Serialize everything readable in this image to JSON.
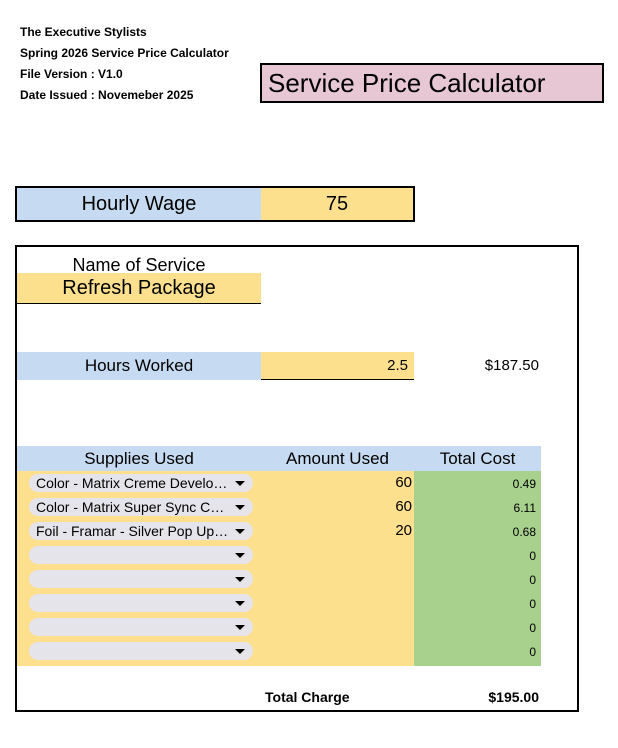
{
  "header": {
    "company": "The Executive Stylists",
    "subtitle": "Spring 2026 Service Price Calculator",
    "file_version": "File Version : V1.0",
    "date_issued": "Date Issued : Novemeber 2025"
  },
  "title_box": "Service Price Calculator",
  "wage": {
    "label": "Hourly Wage",
    "value": "75"
  },
  "service": {
    "label": "Name of Service",
    "value": "Refresh Package"
  },
  "hours": {
    "label": "Hours Worked",
    "value": "2.5",
    "total": "$187.50"
  },
  "supplies": {
    "headers": {
      "supplies": "Supplies Used",
      "amount": "Amount Used",
      "total": "Total Cost"
    },
    "rows": [
      {
        "name": "Color - Matrix Creme Developer",
        "amount": "60",
        "cost": "0.49"
      },
      {
        "name": "Color - Matrix Super Sync Color",
        "amount": "60",
        "cost": "6.11"
      },
      {
        "name": "Foil - Framar - Silver Pop Up Foil",
        "amount": "20",
        "cost": "0.68"
      },
      {
        "name": "",
        "amount": "",
        "cost": "0"
      },
      {
        "name": "",
        "amount": "",
        "cost": "0"
      },
      {
        "name": "",
        "amount": "",
        "cost": "0"
      },
      {
        "name": "",
        "amount": "",
        "cost": "0"
      },
      {
        "name": "",
        "amount": "",
        "cost": "0"
      }
    ]
  },
  "total": {
    "label": "Total Charge",
    "value": "$195.00"
  },
  "icons": {
    "dropdown": "chevron-down-icon"
  }
}
